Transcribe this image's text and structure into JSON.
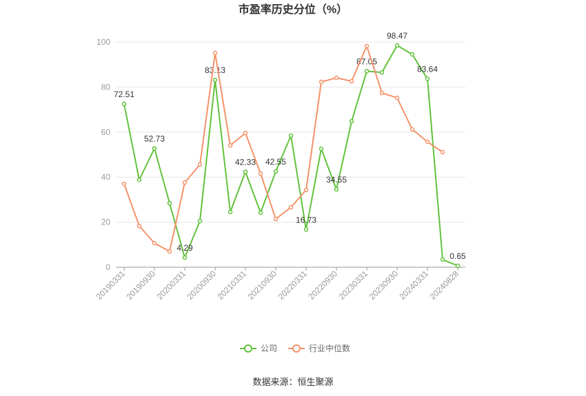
{
  "chart_data": {
    "type": "line",
    "title": "市盈率历史分位（%）",
    "categories": [
      "20190331",
      null,
      "20190930",
      null,
      "20200331",
      null,
      "20200930",
      null,
      "20210331",
      null,
      "20210930",
      null,
      "20220331",
      null,
      "20220930",
      null,
      "20230331",
      null,
      "20230930",
      null,
      "20240331",
      null,
      "20240828"
    ],
    "series": [
      {
        "name": "公司",
        "color": "#62c23c",
        "values": [
          72.51,
          38.8,
          52.73,
          28.4,
          4.29,
          20.5,
          83.13,
          24.5,
          42.33,
          24.2,
          42.55,
          58.4,
          16.73,
          52.6,
          34.55,
          64.8,
          87.05,
          86.5,
          98.47,
          94.5,
          83.64,
          3.4,
          0.65
        ],
        "value_labels": [
          "72.51",
          null,
          "52.73",
          null,
          "4.29",
          null,
          "83.13",
          null,
          "42.33",
          null,
          "42.55",
          null,
          "16.73",
          null,
          "34.55",
          null,
          "87.05",
          null,
          "98.47",
          null,
          "83.64",
          null,
          "0.65"
        ]
      },
      {
        "name": "行业中位数",
        "color": "#f4926a",
        "values": [
          37.0,
          18.3,
          10.7,
          7.0,
          37.6,
          45.6,
          95.1,
          54.1,
          59.6,
          41.6,
          21.4,
          26.6,
          34.3,
          82.3,
          84.1,
          82.6,
          98.2,
          77.4,
          75.2,
          61.2,
          55.7,
          51.1,
          null
        ]
      }
    ],
    "ylim": [
      0,
      100
    ],
    "yticks": [
      0,
      20,
      40,
      60,
      80,
      100
    ],
    "grid": true,
    "legend": "bottom",
    "source": "数据来源：恒生聚源"
  }
}
